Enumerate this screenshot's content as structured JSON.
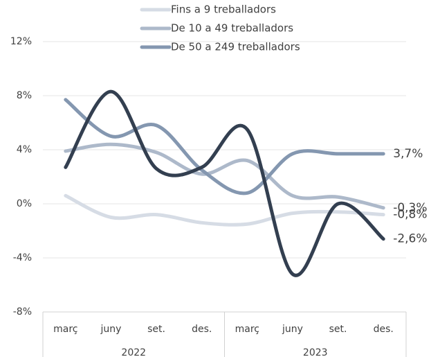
{
  "chart_data": {
    "type": "line",
    "categories": [
      "març",
      "juny",
      "set.",
      "des.",
      "març",
      "juny",
      "set.",
      "des."
    ],
    "groups": [
      "2022",
      "2023"
    ],
    "series": [
      {
        "name": "Fins a 9 treballadors",
        "color": "#d6dce5",
        "values": [
          0.6,
          -1.0,
          -0.8,
          -1.4,
          -1.5,
          -0.7,
          -0.6,
          -0.8
        ],
        "value_labels": [
          null,
          null,
          null,
          null,
          null,
          null,
          null,
          "-0,8%"
        ]
      },
      {
        "name": "De 10 a 49 treballadors",
        "color": "#adb9ca",
        "values": [
          3.9,
          4.4,
          3.8,
          2.2,
          3.2,
          0.6,
          0.5,
          -0.3
        ],
        "value_labels": [
          null,
          null,
          null,
          null,
          null,
          null,
          null,
          "-0,3%"
        ]
      },
      {
        "name": "De 50 a 249 treballadors",
        "color": "#8497b0",
        "values": [
          7.7,
          5.0,
          5.8,
          2.5,
          0.8,
          3.7,
          3.7,
          3.7
        ],
        "value_labels": [
          null,
          null,
          null,
          null,
          null,
          null,
          null,
          "3,7%"
        ]
      },
      {
        "color": "#333f50",
        "values": [
          2.7,
          8.3,
          2.6,
          2.7,
          5.5,
          -5.2,
          0.0,
          -2.6
        ],
        "value_labels": [
          null,
          null,
          null,
          null,
          null,
          null,
          null,
          "-2,6%"
        ]
      }
    ],
    "ylim": [
      -8,
      12
    ],
    "yticks": [
      {
        "value": -8,
        "label": "-8%"
      },
      {
        "value": -4,
        "label": "-4%"
      },
      {
        "value": 0,
        "label": "0%"
      },
      {
        "value": 4,
        "label": "4%"
      },
      {
        "value": 8,
        "label": "8%"
      },
      {
        "value": 12,
        "label": "12%"
      }
    ],
    "grid": true
  }
}
